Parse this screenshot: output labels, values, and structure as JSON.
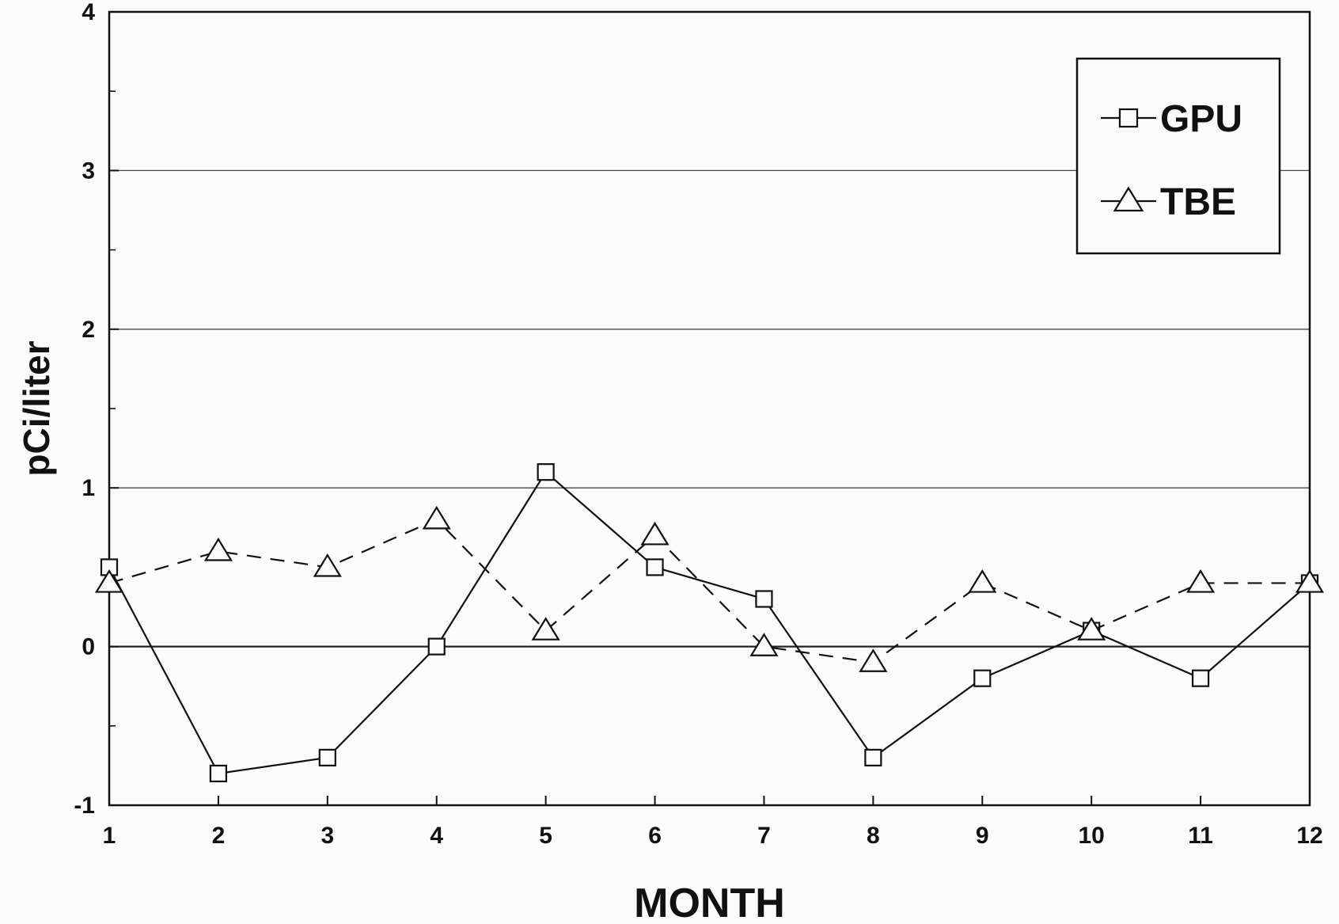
{
  "chart_data": {
    "type": "line",
    "title": "",
    "xlabel": "MONTH",
    "ylabel": "pCi/liter",
    "x": [
      1,
      2,
      3,
      4,
      5,
      6,
      7,
      8,
      9,
      10,
      11,
      12
    ],
    "x_tick_labels": [
      "1",
      "2",
      "3",
      "4",
      "5",
      "6",
      "7",
      "8",
      "9",
      "10",
      "11",
      "12"
    ],
    "y_tick_labels": [
      "-1",
      "0",
      "1",
      "2",
      "3",
      "4"
    ],
    "xlim": [
      1,
      12
    ],
    "ylim": [
      -1,
      4
    ],
    "y_ticks": [
      -1,
      0,
      1,
      2,
      3,
      4
    ],
    "y_minor_ticks": [
      -0.5,
      0.5,
      1.5,
      2.5,
      3.5
    ],
    "grid": "horizontal",
    "legend_position": "top-right",
    "series": [
      {
        "name": "GPU",
        "marker": "square",
        "line_style": "solid",
        "values": [
          0.5,
          -0.8,
          -0.7,
          0.0,
          1.1,
          0.5,
          0.3,
          -0.7,
          -0.2,
          0.1,
          -0.2,
          0.4
        ]
      },
      {
        "name": "TBE",
        "marker": "triangle",
        "line_style": "dashed",
        "values": [
          0.4,
          0.6,
          0.5,
          0.8,
          0.1,
          0.7,
          0.0,
          -0.1,
          0.4,
          0.1,
          0.4,
          0.4
        ]
      }
    ],
    "colors": {
      "line": "#111111",
      "grid": "#444444",
      "background": "#fbfbfb"
    }
  }
}
